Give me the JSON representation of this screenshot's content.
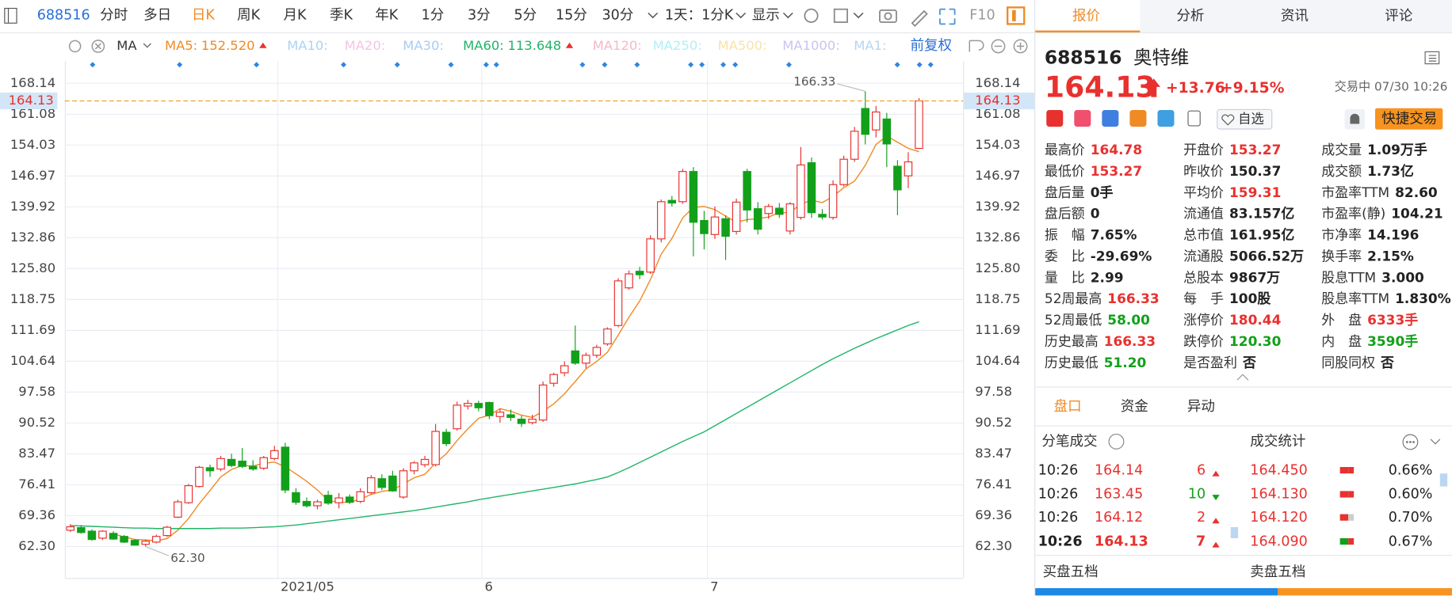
{
  "toolbar": {
    "code": "688516",
    "periods": [
      "分时",
      "多日",
      "日K",
      "周K",
      "月K",
      "季K",
      "年K",
      "1分",
      "3分",
      "5分",
      "15分",
      "30分"
    ],
    "active_period": 2,
    "interval": "1天：1分K",
    "display": "显示",
    "f10": "F10"
  },
  "indicator_bar": {
    "name": "MA",
    "items": [
      {
        "label": "MA5:",
        "value": "152.520",
        "color": "#f08a24"
      },
      {
        "label": "MA10:",
        "color": "#a8d4f5"
      },
      {
        "label": "MA20:",
        "color": "#f3c4e4"
      },
      {
        "label": "MA30:",
        "color": "#a9cdf0"
      },
      {
        "label": "MA60:",
        "value": "113.648",
        "color": "#20b468"
      },
      {
        "label": "MA120:",
        "color": "#f5b8c8"
      },
      {
        "label": "MA250:",
        "color": "#aef0f5"
      },
      {
        "label": "MA500:",
        "color": "#f7e3a8"
      },
      {
        "label": "MA1000:",
        "color": "#c8c4f0"
      },
      {
        "label": "MA1:",
        "color": "#b8d4f0"
      }
    ],
    "adjust": "前复权"
  },
  "chart_data": {
    "type": "candlestick",
    "categories": [
      null,
      null,
      null,
      null,
      null,
      null,
      null,
      null,
      null,
      null,
      null,
      null,
      null,
      null,
      null,
      null,
      null,
      null,
      null,
      "2021/05",
      null,
      null,
      null,
      null,
      null,
      null,
      null,
      null,
      null,
      null,
      null,
      null,
      null,
      null,
      null,
      null,
      null,
      null,
      "6",
      null,
      null,
      null,
      null,
      null,
      null,
      null,
      null,
      null,
      null,
      null,
      null,
      null,
      null,
      null,
      null,
      null,
      null,
      null,
      null,
      "7",
      null,
      null,
      null,
      null,
      null,
      null,
      null,
      null,
      null,
      null,
      null,
      null,
      null,
      null,
      null,
      null,
      null,
      null,
      null,
      null
    ],
    "open": [
      66.0,
      66.6,
      65.8,
      64.2,
      65.3,
      64.6,
      63.7,
      62.8,
      63.3,
      64.8,
      69.0,
      72.3,
      76.0,
      80.3,
      80.0,
      82.2,
      81.8,
      80.6,
      80.2,
      82.4,
      85.0,
      74.6,
      72.6,
      71.6,
      74.0,
      72.3,
      73.6,
      72.6,
      74.6,
      77.8,
      78.4,
      73.6,
      79.6,
      81.0,
      81.0,
      88.4,
      89.2,
      94.4,
      95.0,
      95.2,
      92.0,
      92.4,
      91.4,
      90.6,
      91.2,
      99.6,
      102.0,
      107.0,
      104.2,
      106.0,
      108.6,
      112.8,
      121.4,
      125.2,
      125.0,
      132.6,
      141.4,
      141.1,
      148.0,
      136.8,
      133.6,
      137.2,
      134.3,
      148.0,
      139.5,
      138.4,
      139.6,
      134.4,
      137.5,
      150.0,
      138.2,
      137.5,
      145.0,
      150.8,
      162.4,
      157.5,
      160.0,
      149.2,
      147.0,
      153.27
    ],
    "high": [
      67.4,
      67.2,
      66.2,
      66.0,
      65.8,
      64.9,
      64.0,
      63.8,
      65.0,
      67.0,
      73.0,
      76.6,
      80.7,
      81.0,
      83.0,
      83.5,
      84.8,
      82.0,
      83.0,
      85.3,
      86.0,
      75.6,
      73.5,
      73.0,
      75.0,
      74.5,
      74.2,
      75.6,
      78.6,
      78.8,
      79.6,
      80.2,
      81.8,
      83.0,
      90.3,
      89.2,
      95.4,
      95.8,
      95.6,
      95.4,
      93.8,
      93.6,
      92.2,
      92.4,
      100.0,
      102.0,
      104.6,
      112.8,
      106.6,
      108.4,
      112.4,
      123.6,
      125.4,
      126.2,
      133.4,
      141.6,
      142.4,
      148.6,
      149.0,
      139.0,
      140.0,
      138.0,
      141.8,
      148.6,
      141.0,
      140.6,
      140.8,
      141.0,
      153.6,
      151.2,
      139.4,
      146.0,
      151.6,
      158.2,
      166.33,
      163.0,
      161.4,
      150.6,
      152.4,
      164.78
    ],
    "low": [
      65.6,
      65.2,
      63.6,
      63.8,
      63.8,
      63.1,
      62.5,
      62.3,
      63.0,
      64.5,
      68.8,
      72.0,
      75.8,
      78.2,
      79.5,
      80.4,
      80.2,
      79.6,
      79.8,
      82.0,
      74.5,
      71.8,
      71.2,
      70.8,
      71.8,
      71.0,
      72.0,
      72.2,
      74.2,
      75.2,
      74.8,
      73.2,
      78.8,
      80.4,
      80.6,
      85.2,
      88.8,
      93.6,
      93.2,
      91.4,
      90.6,
      91.0,
      89.6,
      90.2,
      90.8,
      98.8,
      101.2,
      103.8,
      103.0,
      105.4,
      108.2,
      112.4,
      121.0,
      123.4,
      124.6,
      131.8,
      140.0,
      140.6,
      128.6,
      130.2,
      132.6,
      127.8,
      133.6,
      136.4,
      133.6,
      137.2,
      137.4,
      133.6,
      137.0,
      137.4,
      137.0,
      137.0,
      144.6,
      150.2,
      154.2,
      155.8,
      149.0,
      138.0,
      144.2,
      153.27
    ],
    "close": [
      66.8,
      65.5,
      63.9,
      65.8,
      64.0,
      63.3,
      62.6,
      63.5,
      64.6,
      66.7,
      72.5,
      76.2,
      80.4,
      79.6,
      82.4,
      80.8,
      80.6,
      80.0,
      82.6,
      84.2,
      75.2,
      72.4,
      71.6,
      72.5,
      72.2,
      73.4,
      72.4,
      74.8,
      78.0,
      75.8,
      75.0,
      79.6,
      81.4,
      82.2,
      88.6,
      85.8,
      94.6,
      95.0,
      94.0,
      92.2,
      93.0,
      91.8,
      90.4,
      91.4,
      99.2,
      101.6,
      103.6,
      104.2,
      106.0,
      107.8,
      112.0,
      123.0,
      124.6,
      124.4,
      132.6,
      141.1,
      140.8,
      148.0,
      136.4,
      133.8,
      137.6,
      133.2,
      141.0,
      139.2,
      134.8,
      140.0,
      138.2,
      140.6,
      149.5,
      138.6,
      137.6,
      145.0,
      150.8,
      157.2,
      156.5,
      161.6,
      154.3,
      143.8,
      150.2,
      164.13
    ],
    "up_color": "#e8312f",
    "down_color": "#12a01a",
    "series": [
      {
        "color": "#f08a24",
        "values": [
          null,
          null,
          null,
          null,
          65.2,
          64.5,
          63.9,
          63.8,
          63.6,
          64.1,
          66.0,
          68.7,
          72.1,
          75.1,
          78.2,
          79.9,
          80.8,
          80.7,
          81.3,
          81.6,
          80.5,
          78.9,
          77.2,
          75.2,
          72.8,
          72.4,
          72.4,
          73.1,
          74.2,
          74.9,
          75.2,
          76.6,
          78.0,
          78.8,
          81.4,
          83.5,
          86.5,
          89.2,
          91.6,
          92.3,
          93.8,
          93.2,
          92.3,
          91.8,
          93.2,
          94.9,
          97.2,
          100.0,
          102.9,
          104.6,
          106.7,
          110.6,
          114.7,
          118.4,
          123.3,
          129.1,
          132.7,
          137.4,
          139.8,
          140.0,
          139.3,
          137.8,
          136.4,
          137.0,
          137.2,
          137.6,
          138.6,
          138.6,
          140.6,
          141.4,
          140.9,
          142.3,
          144.3,
          145.8,
          149.4,
          154.2,
          156.1,
          154.7,
          153.3,
          152.52
        ]
      },
      {
        "color": "#20b468",
        "values": [
          67.1,
          67.0,
          66.9,
          66.8,
          66.7,
          66.6,
          66.5,
          66.5,
          66.4,
          66.4,
          66.4,
          66.4,
          66.4,
          66.4,
          66.5,
          66.5,
          66.5,
          66.6,
          66.7,
          66.8,
          67.0,
          67.2,
          67.5,
          67.8,
          68.1,
          68.4,
          68.7,
          69.0,
          69.3,
          69.6,
          69.9,
          70.2,
          70.5,
          70.9,
          71.3,
          71.7,
          72.1,
          72.5,
          73.0,
          73.4,
          73.8,
          74.2,
          74.6,
          75.0,
          75.4,
          75.8,
          76.2,
          76.6,
          77.1,
          77.6,
          78.2,
          79.2,
          80.3,
          81.5,
          82.7,
          83.9,
          85.1,
          86.3,
          87.4,
          88.5,
          89.9,
          91.3,
          92.7,
          94.1,
          95.5,
          96.9,
          98.3,
          99.7,
          101.1,
          102.5,
          103.9,
          105.2,
          106.4,
          107.6,
          108.7,
          109.8,
          110.8,
          111.8,
          112.8,
          113.648
        ]
      }
    ],
    "max_label": {
      "value": 166.33,
      "label": "166.33"
    },
    "min_label": {
      "value": 62.3,
      "label": "62.30"
    },
    "ylim": [
      55.1,
      172.4
    ],
    "yticks": [
      {
        "value": 62.3,
        "label": "62.30"
      },
      69.36,
      76.41,
      83.47,
      90.52,
      97.58,
      104.64,
      111.69,
      118.75,
      {
        "value": 125.8,
        "label": "125.80"
      },
      132.86,
      139.92,
      146.97,
      154.03,
      161.08,
      168.14
    ],
    "grid": true
  },
  "tabs": {
    "items": [
      "报价",
      "分析",
      "资讯",
      "评论"
    ],
    "active": 0
  },
  "quote": {
    "code": "688516",
    "name": "奥特维",
    "price": "164.13",
    "change": "+13.76",
    "change_pct": "+9.15%",
    "status": "交易中 07/30 10:26",
    "watch": "自选",
    "quick_trade": "快捷交易",
    "columns": [
      [
        {
          "label": "最高价",
          "value": "164.78",
          "tone": "up"
        },
        {
          "label": "最低价",
          "value": "153.27",
          "tone": "up"
        },
        {
          "label": "盘后量",
          "value": "0手",
          "tone": "plain"
        },
        {
          "label": "盘后额",
          "value": "0",
          "tone": "plain"
        },
        {
          "label": "振　幅",
          "value": "7.65%",
          "tone": "plain"
        },
        {
          "label": "委　比",
          "value": "-29.69%",
          "tone": "plain"
        },
        {
          "label": "量　比",
          "value": "2.99",
          "tone": "plain"
        },
        {
          "label": "52周最高",
          "value": "166.33",
          "tone": "up"
        },
        {
          "label": "52周最低",
          "value": "58.00",
          "tone": "down"
        },
        {
          "label": "历史最高",
          "value": "166.33",
          "tone": "up"
        },
        {
          "label": "历史最低",
          "value": "51.20",
          "tone": "down"
        }
      ],
      [
        {
          "label": "开盘价",
          "value": "153.27",
          "tone": "up"
        },
        {
          "label": "昨收价",
          "value": "150.37",
          "tone": "plain"
        },
        {
          "label": "平均价",
          "value": "159.31",
          "tone": "up"
        },
        {
          "label": "流通值",
          "value": "83.157亿",
          "tone": "plain"
        },
        {
          "label": "总市值",
          "value": "161.95亿",
          "tone": "plain"
        },
        {
          "label": "流通股",
          "value": "5066.52万",
          "tone": "plain"
        },
        {
          "label": "总股本",
          "value": "9867万",
          "tone": "plain"
        },
        {
          "label": "每　手",
          "value": "100股",
          "tone": "plain"
        },
        {
          "label": "涨停价",
          "value": "180.44",
          "tone": "up"
        },
        {
          "label": "跌停价",
          "value": "120.30",
          "tone": "down"
        },
        {
          "label": "是否盈利",
          "value": "否",
          "tone": "plain"
        }
      ],
      [
        {
          "label": "成交量",
          "value": "1.09万手",
          "tone": "plain"
        },
        {
          "label": "成交额",
          "value": "1.73亿",
          "tone": "plain"
        },
        {
          "label": "市盈率TTM",
          "value": "82.60",
          "tone": "plain"
        },
        {
          "label": "市盈率(静)",
          "value": "104.21",
          "tone": "plain"
        },
        {
          "label": "市净率",
          "value": "14.196",
          "tone": "plain"
        },
        {
          "label": "换手率",
          "value": "2.15%",
          "tone": "plain"
        },
        {
          "label": "股息TTM",
          "value": "3.000",
          "tone": "plain"
        },
        {
          "label": "股息率TTM",
          "value": "1.830%",
          "tone": "plain"
        },
        {
          "label": "外　盘",
          "value": "6333手",
          "tone": "up"
        },
        {
          "label": "内　盘",
          "value": "3590手",
          "tone": "down"
        },
        {
          "label": "同股同权",
          "value": "否",
          "tone": "plain"
        }
      ]
    ]
  },
  "sub_tabs": {
    "items": [
      "盘口",
      "资金",
      "异动"
    ],
    "active": 0
  },
  "trades": {
    "title": "分笔成交",
    "rows": [
      {
        "time": "10:26",
        "price": "164.14",
        "volume": "6",
        "direction": "up"
      },
      {
        "time": "10:26",
        "price": "163.45",
        "volume": "10",
        "direction": "down"
      },
      {
        "time": "10:26",
        "price": "164.12",
        "volume": "2",
        "direction": "up"
      },
      {
        "time": "10:26",
        "price": "164.13",
        "volume": "7",
        "direction": "up"
      }
    ]
  },
  "stats": {
    "title": "成交统计",
    "rows": [
      {
        "price": "164.450",
        "pct": "0.66%"
      },
      {
        "price": "164.130",
        "pct": "0.60%"
      },
      {
        "price": "164.120",
        "pct": "0.70%"
      },
      {
        "price": "164.090",
        "pct": "0.67%"
      }
    ]
  },
  "order_book": {
    "bid_title": "买盘五档",
    "ask_title": "卖盘五档"
  }
}
